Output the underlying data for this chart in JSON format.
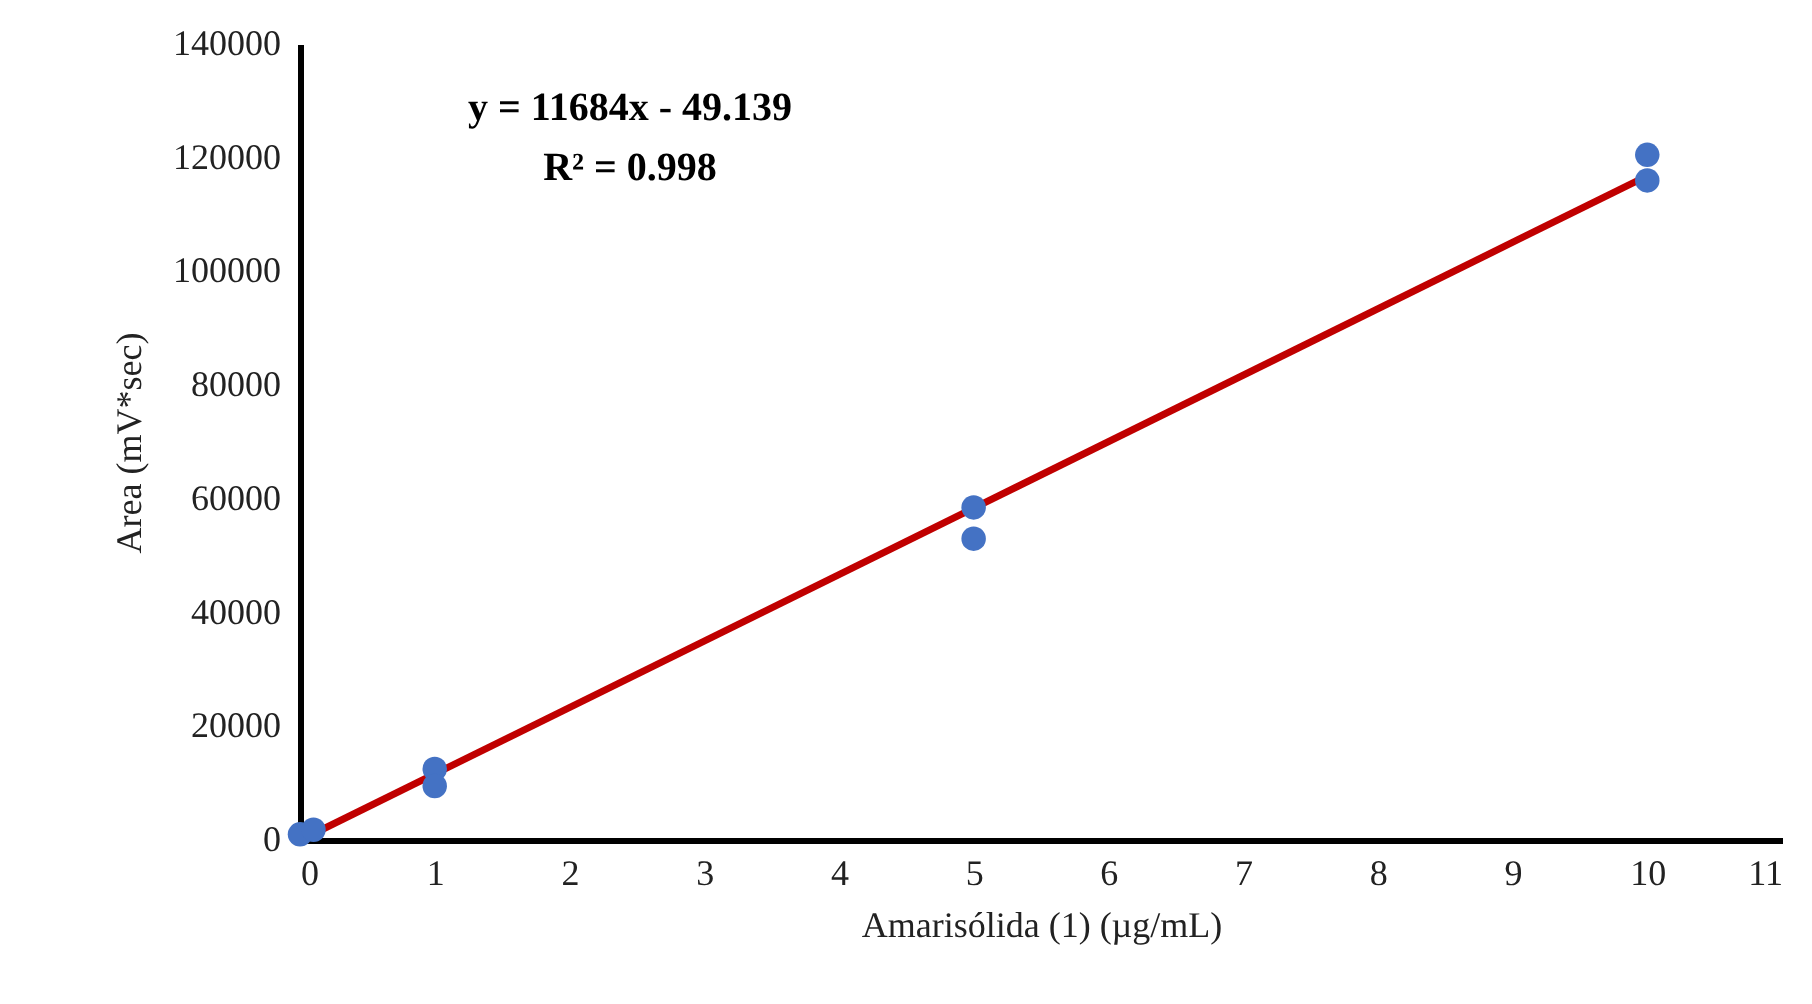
{
  "chart_data": {
    "type": "scatter",
    "xlabel": "Amarisólida (1) (µg/mL)",
    "ylabel": "Area (mV*sec)",
    "annotations": [
      "y = 11684x - 49.139",
      "R² = 0.998"
    ],
    "xlim": [
      0,
      11
    ],
    "xticks": [
      0,
      1,
      2,
      3,
      4,
      5,
      6,
      7,
      8,
      9,
      10,
      11
    ],
    "ylim": [
      0,
      140000
    ],
    "yticks": [
      0,
      20000,
      40000,
      60000,
      80000,
      100000,
      120000,
      140000
    ],
    "grid": false,
    "marker": "circle",
    "series": [
      {
        "type": "line",
        "color": "#c00000",
        "line_style": "solid",
        "marker": "none",
        "x": [
          0.1,
          10
        ],
        "values": [
          1100,
          116800
        ]
      },
      {
        "color": "#4472c4",
        "x": [
          0,
          0.1,
          1,
          1,
          5,
          5,
          10,
          10
        ],
        "values": [
          1000,
          1800,
          12500,
          9500,
          58500,
          53000,
          120500,
          116000
        ]
      }
    ]
  }
}
